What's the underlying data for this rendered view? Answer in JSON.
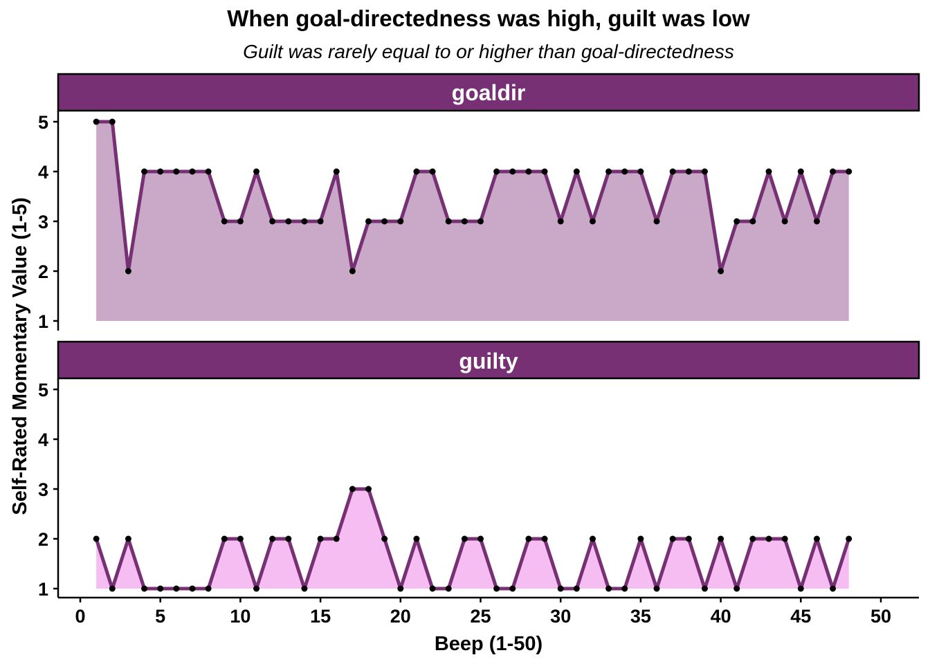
{
  "chart_data": {
    "type": "area",
    "title": "When goal-directedness was high, guilt was low",
    "subtitle": "Guilt was rarely equal to or higher than goal-directedness",
    "xlabel": "Beep (1-50)",
    "ylabel": "Self-Rated Momentary Value (1-5)",
    "xlim": [
      0,
      50
    ],
    "ylim": [
      1,
      5
    ],
    "x_ticks": [
      0,
      5,
      10,
      15,
      20,
      25,
      30,
      35,
      40,
      45,
      50
    ],
    "y_ticks": [
      1,
      2,
      3,
      4,
      5
    ],
    "x": [
      1,
      2,
      3,
      4,
      5,
      6,
      7,
      8,
      9,
      10,
      11,
      12,
      13,
      14,
      15,
      16,
      17,
      18,
      19,
      20,
      21,
      22,
      23,
      24,
      25,
      26,
      27,
      28,
      29,
      30,
      31,
      32,
      33,
      34,
      35,
      36,
      37,
      38,
      39,
      40,
      41,
      42,
      43,
      44,
      45,
      46,
      47,
      48
    ],
    "grid": false,
    "series": [
      {
        "name": "goaldir",
        "line_color": "#763073",
        "fill_color": "#c9a9c7",
        "values": [
          5,
          5,
          2,
          4,
          4,
          4,
          4,
          4,
          3,
          3,
          4,
          3,
          3,
          3,
          3,
          4,
          2,
          3,
          3,
          3,
          4,
          4,
          3,
          3,
          3,
          4,
          4,
          4,
          4,
          3,
          4,
          3,
          4,
          4,
          4,
          3,
          4,
          4,
          4,
          2,
          3,
          3,
          4,
          3,
          4,
          3,
          4,
          4
        ]
      },
      {
        "name": "guilty",
        "line_color": "#763073",
        "fill_color": "#f5bdf2",
        "values": [
          2,
          1,
          2,
          1,
          1,
          1,
          1,
          1,
          2,
          2,
          1,
          2,
          2,
          1,
          2,
          2,
          3,
          3,
          2,
          1,
          2,
          1,
          1,
          2,
          2,
          1,
          1,
          2,
          2,
          1,
          1,
          2,
          1,
          1,
          2,
          1,
          2,
          2,
          1,
          2,
          1,
          2,
          2,
          2,
          1,
          2,
          1,
          2
        ]
      }
    ],
    "colors": {
      "strip_background": "#763073",
      "strip_text": "#ffffff",
      "point": "#000000"
    }
  }
}
